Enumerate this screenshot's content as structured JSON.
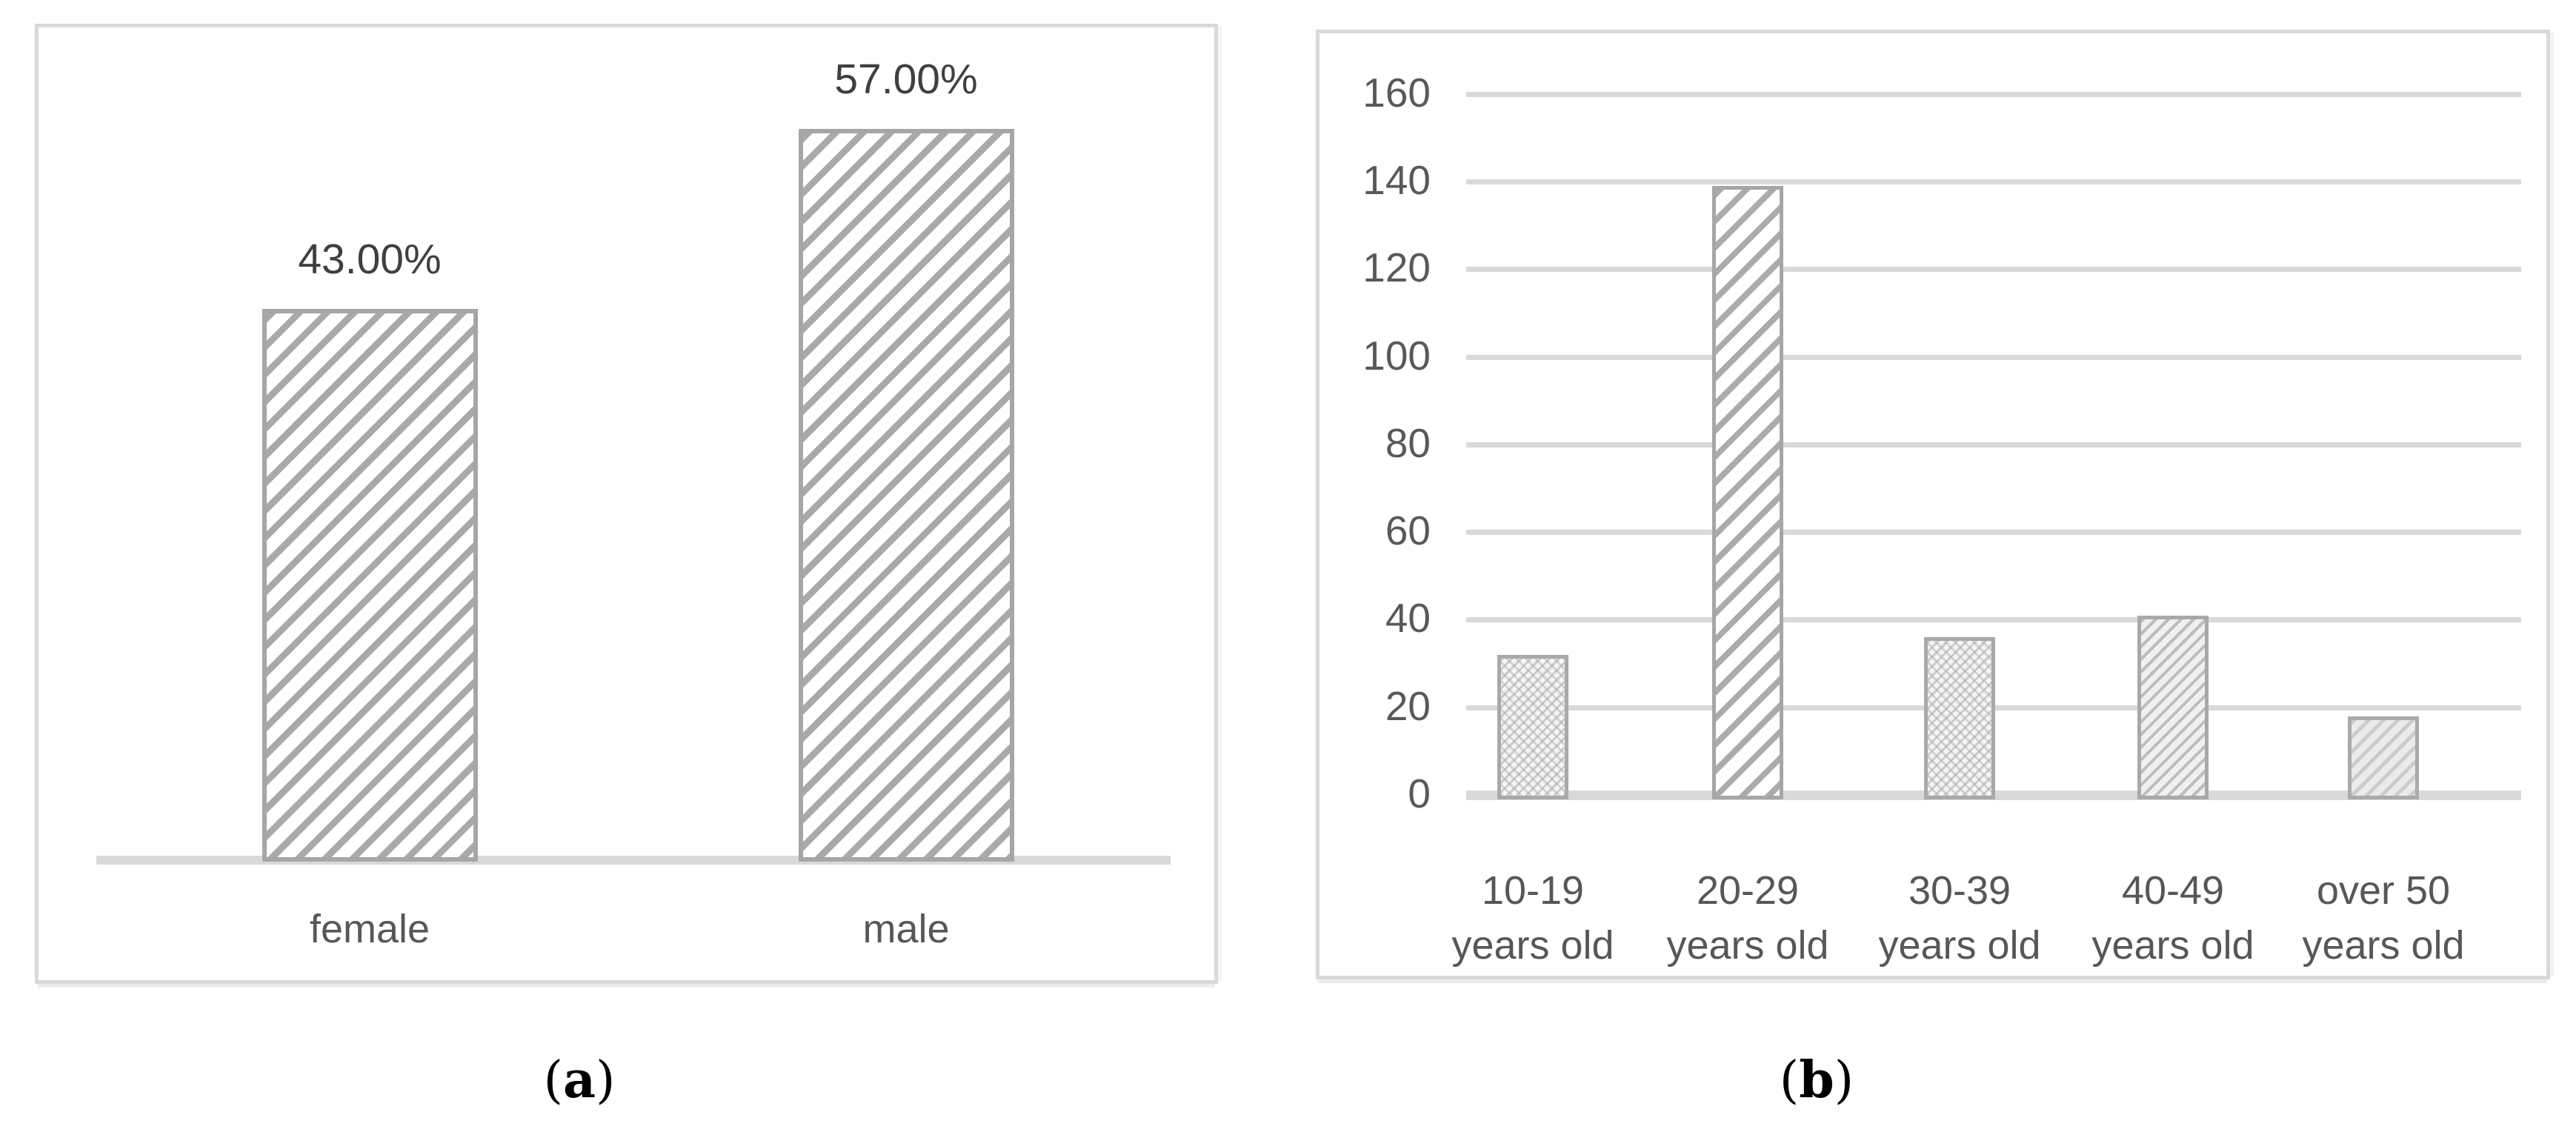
{
  "style": {
    "bar_border_gray": "#a6a6a6",
    "grid_gray": "#d9d9d9",
    "value_text": "#3f3f3f",
    "axis_text": "#595959"
  },
  "captions": {
    "a": {
      "open": "(",
      "letter": "a",
      "close": ")"
    },
    "b": {
      "open": "(",
      "letter": "b",
      "close": ")"
    }
  },
  "chart_data": [
    {
      "id": "gender-share",
      "panel": "a",
      "type": "bar",
      "categories": [
        "female",
        "male"
      ],
      "values": [
        43,
        57
      ],
      "data_labels": [
        "43.00%",
        "57.00%"
      ],
      "value_unit": "%",
      "ylim": [
        0,
        60
      ],
      "grid": false,
      "yaxis_visible": false,
      "bar_patterns": [
        "diagonal-wide",
        "diagonal-wide"
      ],
      "title": "",
      "xlabel": "",
      "ylabel": ""
    },
    {
      "id": "age-distribution",
      "panel": "b",
      "type": "bar",
      "categories": [
        [
          "10-19",
          "years old"
        ],
        [
          "20-29",
          "years old"
        ],
        [
          "30-39",
          "years old"
        ],
        [
          "40-49",
          "years old"
        ],
        [
          "over 50",
          "years old"
        ]
      ],
      "values": [
        33,
        140,
        37,
        42,
        19
      ],
      "yticks": [
        0,
        20,
        40,
        60,
        80,
        100,
        120,
        140,
        160
      ],
      "ylim": [
        0,
        160
      ],
      "grid": true,
      "legend": "none",
      "bar_patterns": [
        "weave",
        "diagonal-wide-b",
        "weave",
        "diagonal-fine",
        "diagonal-light"
      ],
      "title": "",
      "xlabel": "",
      "ylabel": ""
    }
  ]
}
